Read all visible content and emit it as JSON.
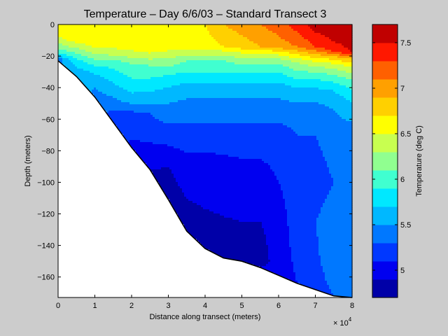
{
  "chart_data": {
    "type": "heatmap",
    "subtype": "filled-contour",
    "title": "Temperature – Day 6/6/03 – Standard Transect 3",
    "xlabel": "Distance along transect (meters)",
    "ylabel": "Depth (meters)",
    "x_multiplier_label": "× 10",
    "x_multiplier_exponent": "4",
    "xlim": [
      0,
      80000
    ],
    "ylim": [
      -173,
      0
    ],
    "x_ticks": [
      0,
      10000,
      20000,
      30000,
      40000,
      50000,
      60000,
      70000,
      80000
    ],
    "x_tick_labels": [
      "0",
      "1",
      "2",
      "3",
      "4",
      "5",
      "6",
      "7",
      "8"
    ],
    "y_ticks": [
      0,
      -20,
      -40,
      -60,
      -80,
      -100,
      -120,
      -140,
      -160
    ],
    "y_tick_labels": [
      "0",
      "−20",
      "−40",
      "−60",
      "−80",
      "−100",
      "−120",
      "−140",
      "−160"
    ],
    "grid": false,
    "colorbar": {
      "label": "Temperature (deg C)",
      "range": [
        4.7,
        7.7
      ],
      "ticks": [
        5,
        5.5,
        6,
        6.5,
        7,
        7.5
      ],
      "tick_labels": [
        "5",
        "5.5",
        "6",
        "6.5",
        "7",
        "7.5"
      ],
      "levels": [
        4.7,
        4.9,
        5.1,
        5.3,
        5.5,
        5.7,
        5.9,
        6.1,
        6.3,
        6.5,
        6.7,
        6.9,
        7.1,
        7.3,
        7.5,
        7.7
      ],
      "colors": [
        "#0000a8",
        "#0000f0",
        "#0038ff",
        "#0078ff",
        "#00b8ff",
        "#00e8ff",
        "#40ffd0",
        "#90ff90",
        "#c8ff50",
        "#ffff00",
        "#ffd000",
        "#ffa000",
        "#ff6000",
        "#ff1800",
        "#c00000"
      ]
    },
    "bottom_profile": {
      "x": [
        0,
        5000,
        10000,
        15000,
        20000,
        25000,
        30000,
        35000,
        40000,
        45000,
        50000,
        55000,
        60000,
        65000,
        70000,
        75000,
        80000
      ],
      "depth": [
        -23,
        -33,
        -46,
        -62,
        -78,
        -92,
        -111,
        -131,
        -142,
        -148,
        -150,
        -154,
        -159,
        -164,
        -168,
        -172,
        -173
      ]
    },
    "temperature_profiles": [
      {
        "x": 0,
        "depth": [
          0,
          -8,
          -14,
          -17,
          -20,
          -22
        ],
        "temp": [
          6.6,
          6.5,
          6.2,
          6.0,
          5.7,
          5.4
        ]
      },
      {
        "x": 5000,
        "depth": [
          0,
          -10,
          -15,
          -20,
          -24,
          -30
        ],
        "temp": [
          6.6,
          6.6,
          6.3,
          6.0,
          5.8,
          5.6
        ]
      },
      {
        "x": 10000,
        "depth": [
          0,
          -12,
          -17,
          -22,
          -28,
          -35,
          -46
        ],
        "temp": [
          6.6,
          6.6,
          6.4,
          6.1,
          5.8,
          5.6,
          5.4
        ]
      },
      {
        "x": 15000,
        "depth": [
          0,
          -12,
          -18,
          -24,
          -32,
          -42,
          -50,
          -58,
          -62
        ],
        "temp": [
          6.6,
          6.6,
          6.4,
          6.0,
          5.8,
          5.6,
          5.4,
          5.2,
          5.2
        ]
      },
      {
        "x": 20000,
        "depth": [
          0,
          -14,
          -19,
          -25,
          -34,
          -48,
          -55,
          -68,
          -78
        ],
        "temp": [
          6.6,
          6.6,
          6.4,
          6.1,
          5.9,
          5.6,
          5.3,
          5.2,
          5.0
        ]
      },
      {
        "x": 25000,
        "depth": [
          0,
          -16,
          -20,
          -26,
          -34,
          -47,
          -56,
          -70,
          -80,
          -92
        ],
        "temp": [
          6.6,
          6.6,
          6.4,
          6.1,
          5.9,
          5.6,
          5.3,
          5.2,
          5.0,
          4.9
        ]
      },
      {
        "x": 30000,
        "depth": [
          0,
          -14,
          -19,
          -24,
          -32,
          -44,
          -56,
          -70,
          -90,
          -111
        ],
        "temp": [
          6.6,
          6.6,
          6.4,
          6.2,
          5.9,
          5.6,
          5.4,
          5.2,
          4.9,
          4.8
        ]
      },
      {
        "x": 35000,
        "depth": [
          0,
          -14,
          -18,
          -23,
          -30,
          -40,
          -54,
          -72,
          -90,
          -131
        ],
        "temp": [
          6.6,
          6.6,
          6.4,
          6.1,
          5.9,
          5.6,
          5.4,
          5.2,
          5.0,
          4.8
        ]
      },
      {
        "x": 40000,
        "depth": [
          0,
          -14,
          -18,
          -23,
          -30,
          -40,
          -54,
          -70,
          -92,
          -142
        ],
        "temp": [
          6.7,
          6.6,
          6.4,
          6.1,
          5.9,
          5.6,
          5.4,
          5.2,
          5.0,
          4.8
        ]
      },
      {
        "x": 45000,
        "depth": [
          0,
          -14,
          -18,
          -23,
          -30,
          -40,
          -54,
          -70,
          -95,
          -148
        ],
        "temp": [
          6.9,
          6.7,
          6.4,
          6.1,
          5.9,
          5.6,
          5.4,
          5.2,
          5.0,
          4.8
        ]
      },
      {
        "x": 50000,
        "depth": [
          0,
          -14,
          -18,
          -23,
          -30,
          -40,
          -54,
          -70,
          -100,
          -150
        ],
        "temp": [
          7.0,
          6.8,
          6.5,
          6.2,
          5.9,
          5.6,
          5.4,
          5.2,
          5.0,
          4.8
        ]
      },
      {
        "x": 55000,
        "depth": [
          0,
          -14,
          -18,
          -23,
          -30,
          -40,
          -54,
          -70,
          -100,
          -150,
          -154
        ],
        "temp": [
          7.1,
          6.9,
          6.5,
          6.2,
          5.9,
          5.6,
          5.4,
          5.2,
          5.0,
          4.8,
          4.9
        ]
      },
      {
        "x": 60000,
        "depth": [
          0,
          -14,
          -18,
          -23,
          -30,
          -40,
          -54,
          -70,
          -100,
          -125,
          -159
        ],
        "temp": [
          7.2,
          7.0,
          6.6,
          6.2,
          5.9,
          5.6,
          5.4,
          5.2,
          5.1,
          5.0,
          5.0
        ]
      },
      {
        "x": 65000,
        "depth": [
          0,
          -14,
          -19,
          -24,
          -32,
          -40,
          -54,
          -70,
          -100,
          -125,
          -164
        ],
        "temp": [
          7.4,
          7.1,
          6.7,
          6.3,
          6.0,
          5.7,
          5.4,
          5.3,
          5.2,
          5.2,
          5.1
        ]
      },
      {
        "x": 70000,
        "depth": [
          0,
          -14,
          -20,
          -25,
          -32,
          -40,
          -54,
          -70,
          -100,
          -125,
          -168
        ],
        "temp": [
          7.6,
          7.3,
          6.8,
          6.4,
          6.0,
          5.7,
          5.4,
          5.3,
          5.2,
          5.3,
          5.2
        ]
      },
      {
        "x": 75000,
        "depth": [
          0,
          -16,
          -21,
          -26,
          -34,
          -42,
          -54,
          -70,
          -100,
          -125,
          -140,
          -172
        ],
        "temp": [
          7.7,
          7.4,
          6.8,
          6.4,
          6.0,
          5.7,
          5.5,
          5.4,
          5.3,
          5.4,
          5.5,
          5.3
        ]
      },
      {
        "x": 80000,
        "depth": [
          0,
          -18,
          -22,
          -27,
          -35,
          -44,
          -54,
          -70,
          -100,
          -125,
          -140,
          -173
        ],
        "temp": [
          7.7,
          7.5,
          6.9,
          6.5,
          6.1,
          5.8,
          5.6,
          5.4,
          5.3,
          5.4,
          5.5,
          5.4
        ]
      }
    ]
  }
}
